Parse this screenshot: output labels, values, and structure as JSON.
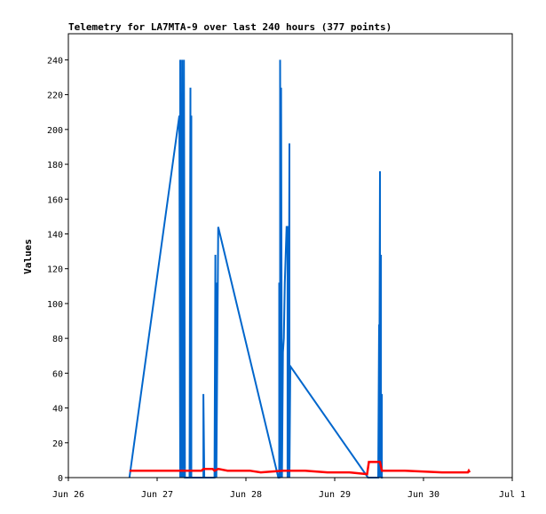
{
  "chart_data": {
    "type": "line",
    "title": "Telemetry for LA7MTA-9 over last 240 hours (377 points)",
    "xlabel": "",
    "ylabel": "Values",
    "x_ticks": [
      "Jun 26",
      "Jun 27",
      "Jun 28",
      "Jun 29",
      "Jun 30",
      "Jul 1"
    ],
    "xlim": [
      "Jun 26",
      "Jul 1"
    ],
    "ylim": [
      0,
      255
    ],
    "y_ticks": [
      0,
      20,
      40,
      60,
      80,
      100,
      120,
      140,
      160,
      180,
      200,
      220,
      240
    ],
    "grid": false,
    "series": [
      {
        "color": "#0066cc",
        "x": [
          "Jun 26 16:30",
          "Jun 27 06:00",
          "Jun 27 06:15",
          "Jun 27 06:15",
          "Jun 27 06:30",
          "Jun 27 06:30",
          "Jun 27 06:45",
          "Jun 27 06:45",
          "Jun 27 07:00",
          "Jun 27 07:00",
          "Jun 27 07:15",
          "Jun 27 07:15",
          "Jun 27 07:30",
          "Jun 27 08:45",
          "Jun 27 09:00",
          "Jun 27 09:00",
          "Jun 27 09:15",
          "Jun 27 09:15",
          "Jun 27 09:30",
          "Jun 27 09:45",
          "Jun 27 12:30",
          "Jun 27 12:30",
          "Jun 27 12:45",
          "Jun 27 15:30",
          "Jun 27 15:45",
          "Jun 27 15:45",
          "Jun 27 16:00",
          "Jun 27 16:00",
          "Jun 27 16:30",
          "Jun 28 08:45",
          "Jun 28 09:00",
          "Jun 28 09:00",
          "Jun 28 09:15",
          "Jun 28 09:15",
          "Jun 28 09:30",
          "Jun 28 09:30",
          "Jun 28 09:45",
          "Jun 28 10:00",
          "Jun 28 10:15",
          "Jun 28 10:30",
          "Jun 28 10:45",
          "Jun 28 11:00",
          "Jun 28 11:15",
          "Jun 28 11:15",
          "Jun 28 11:30",
          "Jun 28 11:30",
          "Jun 28 11:45",
          "Jun 28 11:45",
          "Jun 28 12:00",
          "Jun 29 09:00",
          "Jun 29 11:45",
          "Jun 29 12:00",
          "Jun 29 12:00",
          "Jun 29 12:15",
          "Jun 29 12:15",
          "Jun 29 12:30",
          "Jun 29 12:30",
          "Jun 29 12:45",
          "Jun 29 12:45",
          "Jun 29 13:00"
        ],
        "y": [
          0,
          208,
          0,
          240,
          0,
          40,
          0,
          240,
          0,
          120,
          0,
          240,
          0,
          0,
          224,
          0,
          208,
          0,
          0,
          0,
          0,
          48,
          0,
          0,
          128,
          0,
          112,
          0,
          144,
          0,
          0,
          112,
          0,
          240,
          0,
          224,
          0,
          72,
          80,
          112,
          128,
          144,
          144,
          0,
          96,
          0,
          192,
          0,
          64,
          0,
          0,
          88,
          0,
          176,
          0,
          128,
          0,
          48,
          0,
          0
        ]
      },
      {
        "color": "#ff0000",
        "x": [
          "Jun 26 16:30",
          "Jun 27 12:00",
          "Jun 27 12:30",
          "Jun 27 15:00",
          "Jun 27 15:30",
          "Jun 27 16:30",
          "Jun 27 19:00",
          "Jun 28 01:00",
          "Jun 28 04:00",
          "Jun 28 10:00",
          "Jun 28 16:00",
          "Jun 28 22:00",
          "Jun 29 04:00",
          "Jun 29 08:45",
          "Jun 29 09:15",
          "Jun 29 12:15",
          "Jun 29 12:45",
          "Jun 29 19:00",
          "Jun 30 05:00",
          "Jun 30 12:00",
          "Jun 30 12:15",
          "Jun 30 12:30"
        ],
        "y": [
          4,
          4,
          5,
          5,
          4,
          5,
          4,
          4,
          3,
          4,
          4,
          3,
          3,
          2,
          9,
          9,
          4,
          4,
          3,
          3,
          4,
          3
        ]
      },
      {
        "color": "#000000",
        "x": [
          "Jun 26 16:30",
          "Jun 30 12:30"
        ],
        "y": [
          0,
          0
        ]
      }
    ]
  }
}
